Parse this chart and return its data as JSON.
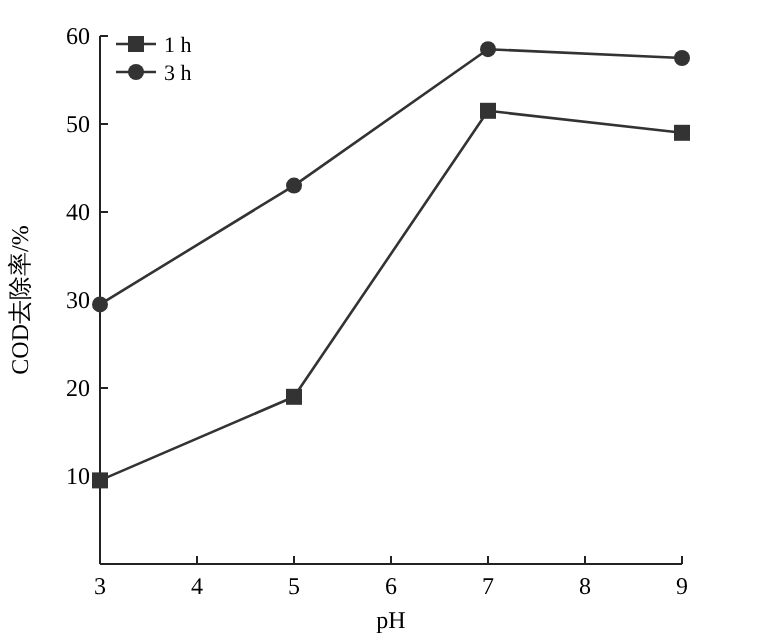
{
  "chart_data": {
    "type": "line",
    "xlabel": "pH",
    "ylabel": "COD去除率/%",
    "x": [
      3,
      5,
      7,
      9
    ],
    "xlim": [
      3,
      9
    ],
    "xticks": [
      3,
      4,
      5,
      6,
      7,
      8,
      9
    ],
    "ylim": [
      0,
      60
    ],
    "yticks": [
      {
        "value": 0,
        "label": null
      },
      10,
      20,
      30,
      40,
      50,
      60
    ],
    "legend": "top left",
    "grid": false,
    "line_style": "solid",
    "series": [
      {
        "name": "1 h",
        "color": "#333333",
        "marker": "square",
        "values": [
          9.5,
          19,
          51.5,
          49
        ]
      },
      {
        "name": "3 h",
        "color": "#333333",
        "marker": "circle",
        "values": [
          29.5,
          43,
          58.5,
          57.5
        ]
      }
    ]
  }
}
